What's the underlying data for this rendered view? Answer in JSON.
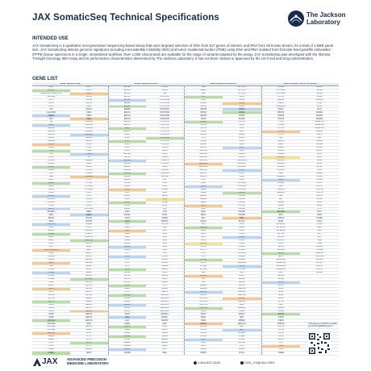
{
  "header": {
    "title": "JAX SomaticSeq Technical Specifications",
    "logo_line1": "The Jackson",
    "logo_line2": "Laboratory"
  },
  "intended_use": {
    "heading": "INTENDED USE",
    "text": "JAX SomaticSeq is a qualitative next generation sequencing based assay that uses targeted selection of DNA from 517 genes of interest, and RNA from 55 known drivers, for a total of 1.5MB panel size. JAX SomaticSeq detects genomic signatures including microsatellite instability (MSI) and tumor mutational burden (TMB) using DNA and RNA isolated from formalin-fixed paraffin embedded (FFPE) tissue specimens in a single, streamlined workflow. Over 1,000 clinical trials are available for the range of variants targeted by the assay. JAX SomaticSeq was developed with the Illumina TruSight Oncology 500 Assay and its performance characteristics determined by The Jackson Laboratory. It has not been cleared or approved by the US Food and Drug Administration."
  },
  "gene_list": {
    "heading": "GENE LIST",
    "columns": [
      "Small Variants Only",
      "Small Variants & CNVs",
      "Small Variants & Fusions",
      "Small Variants, CNVs, & Fusions"
    ],
    "rows": [
      [
        "ABL1",
        "CD274",
        "EPHA2",
        "H3F3B",
        "KDR",
        "NOTCH2",
        "PPM1D",
        "SDHD"
      ],
      [
        "ACVR1",
        "CD276",
        "EPHA3",
        "H3F3C",
        "KEAP1",
        "NOTCH3",
        "PPP2R1A",
        "SETD2"
      ],
      [
        "ABRAXAS1 (FAM175A)",
        "CD74",
        "EPHA5",
        "HGF",
        "KEL",
        "NOTCH4",
        "PPP2R2A",
        "SF3B1"
      ],
      [
        "ACVR1B",
        "CD79A",
        "EPHA7",
        "HIST1H1C",
        "KIT",
        "NPM1",
        "PPP6C",
        "SH2B3"
      ],
      [
        "AKT1",
        "CD79B",
        "EPHB1",
        "HIST1H2BD",
        "KLF4",
        "NRAS",
        "PRDM1",
        "SH2D1A"
      ],
      [
        "AKT2",
        "CDC73",
        "ERBB2",
        "HIST1H3A",
        "KLHL6",
        "NRG1",
        "PREX2",
        "SHQ1"
      ],
      [
        "AKT3",
        "CDH1",
        "ERBB3",
        "HIST1H3B",
        "KMT2A",
        "NSD1",
        "PRKAR1A",
        "SLIT2"
      ],
      [
        "ALK",
        "CDK12",
        "ERBB4",
        "HIST1H3C",
        "KMT2B",
        "NTRK1",
        "PRKCI",
        "SLX4"
      ],
      [
        "ALOX12B",
        "CDK4",
        "ERCC1",
        "HIST1H3D",
        "KMT2C",
        "NTRK2",
        "PRKDC",
        "SMAD2"
      ],
      [
        "AMER1",
        "CDK6",
        "ERCC2",
        "HIST1H3E",
        "KMT2D",
        "NTRK3",
        "PRSS8",
        "SMAD3"
      ],
      [
        "APC",
        "CDK8",
        "ERCC3",
        "HIST1H3F",
        "KRAS",
        "NUP93",
        "PTCH1",
        "SMAD4"
      ],
      [
        "AR",
        "CDKN1A",
        "ERCC4",
        "HIST1H3G",
        "LAMP1",
        "NUTM1",
        "PTEN",
        "SMARCA4"
      ],
      [
        "ARAF",
        "CDKN1B",
        "ERCC5",
        "HIST1H3H",
        "LATS1",
        "PAK1",
        "PTPN11",
        "SMARCB1"
      ],
      [
        "ARFRP1",
        "CDKN2A",
        "ERG",
        "HIST1H3I",
        "LATS2",
        "PAK3",
        "PTPRD",
        "SMARCD1"
      ],
      [
        "ARID1A",
        "CDKN2B",
        "ERRFI1",
        "HIST1H3J",
        "LMO1",
        "PAK7",
        "PTPRS",
        "SMC1A"
      ],
      [
        "ARID1B",
        "CDKN2C",
        "ESR1",
        "HIST2H3A",
        "LRP1B",
        "PALB2",
        "PTPRT",
        "SMC3"
      ],
      [
        "ARID2",
        "CEBPA",
        "ETS1",
        "HIST2H3C",
        "LYN",
        "PARP1",
        "QKI",
        "SMO"
      ],
      [
        "ARID5B",
        "CENPA",
        "ETV1",
        "HIST2H3D",
        "LZTR1",
        "PAX3",
        "RAB35",
        "SNCAIP"
      ],
      [
        "ASXL1",
        "CHD2",
        "ETV4",
        "HIST3H3",
        "MAGI2",
        "PAX5",
        "RAC1",
        "SOCS1"
      ],
      [
        "ASXL2",
        "CHD4",
        "ETV5",
        "HLA-A",
        "MALT1",
        "PAX7",
        "RAD21",
        "SOX10"
      ],
      [
        "ATM",
        "CHEK1",
        "ETV6",
        "HLA-B",
        "MAP2K1",
        "PAX8",
        "RAD50",
        "SOX17"
      ],
      [
        "ATR",
        "CHEK2",
        "EWSR1",
        "HLA-C",
        "MAP2K2",
        "PBRM1",
        "RAD51",
        "SOX2"
      ],
      [
        "ATRX",
        "CIC",
        "EZH2",
        "HNF1A",
        "MAP2K4",
        "PDCD1",
        "RAD51B",
        "SOX9"
      ],
      [
        "AURKA",
        "CREBBP",
        "FAM123B",
        "HNRNPK",
        "MAP3K1",
        "PDCD1LG2",
        "RAD51C",
        "SPEN"
      ],
      [
        "AURKB",
        "CRKL",
        "FANCA",
        "HOXB13",
        "MAP3K13",
        "PDGFRA",
        "RAD51D",
        "SPOP"
      ],
      [
        "AXIN1",
        "CRLF2",
        "FANCC",
        "HRAS",
        "MAP3K14",
        "PDGFRB",
        "RAD52",
        "SPTA1"
      ],
      [
        "AXIN2",
        "CSF1R",
        "FANCD2",
        "HSD3B1",
        "MAP4K1",
        "PDK1",
        "RAD54L",
        "SRC"
      ],
      [
        "AXL",
        "CSF3R",
        "FANCE",
        "HSP90AA1",
        "MAPK1",
        "PDPK1",
        "RAF1",
        "SRSF2"
      ],
      [
        "B2M",
        "CSNK1A1",
        "FANCF",
        "ICOSLG",
        "MAPK3",
        "PGR",
        "RANBP2",
        "STAG1"
      ],
      [
        "BAP1",
        "CTCF",
        "FANCG",
        "ID3",
        "MAX",
        "PHF6",
        "RARA",
        "STAG2"
      ],
      [
        "BARD1",
        "CTLA4",
        "FANCI",
        "IDH1",
        "MCL1",
        "PHOX2B",
        "RASA1",
        "STAT3"
      ],
      [
        "BBC3",
        "CTNNA1",
        "FANCL",
        "IDH2",
        "MDC1",
        "PIK3C2B",
        "RB1",
        "STAT4"
      ],
      [
        "BCL10",
        "CTNNB1",
        "FAS",
        "IFNGR1",
        "MDM2",
        "PIK3C2G",
        "RBM10",
        "STAT5A"
      ],
      [
        "BCL2",
        "CUL3",
        "FAT1",
        "IGF1",
        "MDM4",
        "PIK3C3",
        "RECQL4",
        "STAT5B"
      ],
      [
        "BCL2L1",
        "CUX1",
        "FBXW7",
        "IGF1R",
        "MED12",
        "PIK3CA",
        "REL",
        "STK11"
      ],
      [
        "BCL2L11",
        "CXCR4",
        "FGF1",
        "IGF2",
        "MEF2B",
        "PIK3CB",
        "RET",
        "STK40"
      ],
      [
        "BCL2L2",
        "CYLD",
        "FGF10",
        "IKBKE",
        "MEN1",
        "PIK3CD",
        "RFWD2",
        "SUFU"
      ],
      [
        "BCL6",
        "DAXX",
        "FGF14",
        "IKZF1",
        "MET",
        "PIK3CG",
        "RHEB",
        "SUZ12"
      ],
      [
        "BCOR",
        "DCUN1D1",
        "FGF19",
        "IL10",
        "MGA",
        "PIK3R1",
        "RHOA",
        "SYK"
      ],
      [
        "BCORL1",
        "DDR1",
        "FGF2",
        "IL7R",
        "MITF",
        "PIK3R2",
        "RICTOR",
        "TAF1"
      ],
      [
        "BCR",
        "DDR2",
        "FGF23",
        "INHA",
        "MLH1",
        "PIK3R3",
        "RIT1",
        "TBX3"
      ],
      [
        "BIRC3",
        "DDX41",
        "FGF3",
        "INHBA",
        "MLL",
        "PIM1",
        "RNF43",
        "TCEB1"
      ],
      [
        "BLM",
        "DHX15",
        "FGF4",
        "INPP4A",
        "MLLT3",
        "PLCG2",
        "ROS1",
        "TCF3"
      ],
      [
        "BMPR1A",
        "DICER1",
        "FGF5",
        "INPP4B",
        "MPL",
        "PLK2",
        "RPS6KA4",
        "TCF7L2"
      ],
      [
        "BRAF",
        "DIS3",
        "FGF6",
        "INSR",
        "MRE11A",
        "PMAIP1",
        "RPS6KB1",
        "TERC"
      ],
      [
        "BRCA1",
        "DNAJB1",
        "FGF7",
        "IRF2",
        "MSH2",
        "PMS1",
        "RPS6KB2",
        "TERT"
      ],
      [
        "BRCA2",
        "DNMT1",
        "FGF8",
        "IRF4",
        "MSH3",
        "PMS2",
        "RPTOR",
        "TET1"
      ],
      [
        "BRD4",
        "DNMT3A",
        "FGF9",
        "IRS1",
        "MSH6",
        "PNRC1",
        "RUNX1",
        "TET2"
      ],
      [
        "BRIP1",
        "DNMT3B",
        "FGFR1",
        "IRS2",
        "MST1",
        "POLD1",
        "RUNX1T1",
        "TFE3"
      ],
      [
        "BTG1",
        "DOT1L",
        "FGFR2",
        "JAK1",
        "MST1R",
        "POLE",
        "RYBP",
        "TFRC"
      ],
      [
        "BTK",
        "E2F3",
        "FGFR3",
        "JAK2",
        "MTOR",
        "PPARG",
        "SDHA",
        "TGFBR1"
      ],
      [
        "C11orf30 (EMSY)",
        "EED",
        "FGFR4",
        "JAK3",
        "MUTYH",
        "PPM1D",
        "SDHAF2",
        "TGFBR2"
      ],
      [
        "CALR",
        "EGFL7",
        "FH",
        "JUN",
        "MYB",
        "PPP2R1A",
        "SDHB",
        "TMEM127"
      ],
      [
        "CARD11",
        "EGFR",
        "FLCN",
        "KAT6A",
        "MYC",
        "PRDM1",
        "SDHC",
        "TMPRSS2"
      ],
      [
        "CASP8",
        "EIF1AX",
        "FLI1",
        "KDM5A",
        "MYCL1",
        "PREX2",
        "SMARCA2",
        "ZBTB16"
      ],
      [
        "CBFB",
        "EIF4A2",
        "FLT1",
        "KDM5C",
        "MYCN",
        "PRKAR1A",
        "SMARCA4",
        "ZFHX3"
      ],
      [
        "CBL",
        "EIF4E",
        "FLT3",
        "KDM6A",
        "MYD88",
        "PRKCI",
        "SMARCB1",
        "ZNF217"
      ],
      [
        "CCND1",
        "ELOC",
        "FLT4",
        "KEAP1",
        "MYOD1",
        "PTPN11",
        "SMARCD1",
        "ZNF703"
      ],
      [
        "CCND2",
        "EML4",
        "FOXA1",
        "KLF5",
        "NBN",
        "QKI",
        "SMO",
        "ZRSR2"
      ],
      [
        "CCND3",
        "EP300",
        "FOXL2",
        "KMT2A",
        "NCOR1",
        "RAC1",
        "SNCAIP",
        ""
      ],
      [
        "CCNE1",
        "EPCAM",
        "FOXO1",
        "KRAS",
        "NF1",
        "RAD21",
        "SOCS1",
        ""
      ],
      [
        "CD22",
        "EPHA2",
        "FOXP1",
        "LAMP1",
        "NF2",
        "RAD50",
        "SOX10",
        ""
      ],
      [
        "CD274",
        "EPHA3",
        "FRS2",
        "LYN",
        "NFE2L2",
        "RAD51",
        "SOX17",
        ""
      ],
      [
        "CD276",
        "EPHA5",
        "FUBP1",
        "MAGI2",
        "NFKBIA",
        "RAD51B",
        "SOX2",
        ""
      ],
      [
        "CD74",
        "EPHA7",
        "FYN",
        "MALT1",
        "NKX2-1",
        "RAD51C",
        "SOX9",
        ""
      ],
      [
        "CD79A",
        "EPHB1",
        "GABRA6",
        "MAP2K1",
        "NKX3-1",
        "RAD51D",
        "SPEN",
        ""
      ],
      [
        "CD79B",
        "ERBB2",
        "GATA1",
        "MAP2K2",
        "NOTCH1",
        "RAD52",
        "SPOP",
        ""
      ],
      [
        "CDC73",
        "ERBB3",
        "GATA2",
        "MAP2K4",
        "NOTCH2",
        "RAD54L",
        "SPTA1",
        ""
      ],
      [
        "CDH1",
        "ERBB4",
        "GATA3",
        "MAP3K1",
        "NOTCH3",
        "RAF1",
        "SRC",
        ""
      ],
      [
        "CDK12",
        "ERCC1",
        "GATA4",
        "MAP3K13",
        "NOTCH4",
        "RANBP2",
        "SRSF2",
        ""
      ],
      [
        "CDK4",
        "ERCC2",
        "GATA6",
        "MAP3K14",
        "NPM1",
        "RARA",
        "STAG1",
        ""
      ],
      [
        "CDK6",
        "ERCC3",
        "GEN1",
        "MAP4K1",
        "NRAS",
        "RASA1",
        "STAG2",
        ""
      ],
      [
        "CDK8",
        "ERCC4",
        "GID4",
        "MAPK1",
        "NRG1",
        "RB1",
        "STAT3",
        ""
      ],
      [
        "CDKN1A",
        "ERCC5",
        "GLI1",
        "MAPK3",
        "NSD1",
        "RBM10",
        "STAT4",
        ""
      ],
      [
        "CDKN1B",
        "ERG",
        "GNA11",
        "MAX",
        "NTRK1",
        "RECQL4",
        "STAT5A",
        ""
      ],
      [
        "CDKN2A",
        "ERRFI1",
        "GNA13",
        "MCL1",
        "NTRK2",
        "REL",
        "STAT5B",
        ""
      ],
      [
        "CDKN2B",
        "ESR1",
        "GNAQ",
        "MDC1",
        "NTRK3",
        "RET",
        "STK11",
        ""
      ],
      [
        "CDKN2C",
        "ETS1",
        "GNAS",
        "MDM2",
        "NUP93",
        "RFWD2",
        "STK40",
        ""
      ],
      [
        "CEBPA",
        "ETV1",
        "GPR124",
        "MDM4",
        "NUTM1",
        "RHEB",
        "SUFU",
        ""
      ],
      [
        "CENPA",
        "ETV4",
        "GPS2",
        "MED12",
        "PAK1",
        "RHOA",
        "SUZ12",
        ""
      ],
      [
        "CHD2",
        "ETV5",
        "GREM1",
        "MEF2B",
        "PAK3",
        "RICTOR",
        "SYK",
        ""
      ],
      [
        "CHD4",
        "ETV6",
        "GRIN2A",
        "MEN1",
        "PAK7",
        "RIT1",
        "TAF1",
        ""
      ],
      [
        "CHEK1",
        "EWSR1",
        "GRM3",
        "MET",
        "PALB2",
        "RNF43",
        "TBX3",
        ""
      ],
      [
        "CHEK2",
        "EZH2",
        "GSK3B",
        "MGA",
        "PARP1",
        "ROS1",
        "TCEB1",
        ""
      ]
    ],
    "highlights": [
      {
        "r": 1,
        "c": 0,
        "t": "g"
      },
      {
        "r": 2,
        "c": 1,
        "t": "o"
      },
      {
        "r": 3,
        "c": 4,
        "t": "g"
      },
      {
        "r": 4,
        "c": 2,
        "t": "b"
      },
      {
        "r": 5,
        "c": 5,
        "t": "o"
      },
      {
        "r": 6,
        "c": 2,
        "t": "g"
      },
      {
        "r": 7,
        "c": 5,
        "t": "b"
      },
      {
        "r": 8,
        "c": 5,
        "t": "g"
      },
      {
        "r": 9,
        "c": 0,
        "t": "b"
      },
      {
        "r": 10,
        "c": 1,
        "t": "o"
      },
      {
        "r": 11,
        "c": 4,
        "t": "g"
      },
      {
        "r": 12,
        "c": 0,
        "t": "b"
      },
      {
        "r": 13,
        "c": 2,
        "t": "g"
      },
      {
        "r": 14,
        "c": 6,
        "t": "o"
      },
      {
        "r": 15,
        "c": 1,
        "t": "b"
      },
      {
        "r": 16,
        "c": 3,
        "t": "g"
      },
      {
        "r": 17,
        "c": 2,
        "t": "g"
      },
      {
        "r": 18,
        "c": 0,
        "t": "o"
      },
      {
        "r": 19,
        "c": 5,
        "t": "b"
      },
      {
        "r": 20,
        "c": 0,
        "t": "g"
      },
      {
        "r": 21,
        "c": 1,
        "t": "b"
      },
      {
        "r": 22,
        "c": 6,
        "t": "y"
      },
      {
        "r": 23,
        "c": 2,
        "t": "b"
      },
      {
        "r": 24,
        "c": 4,
        "t": "o"
      },
      {
        "r": 25,
        "c": 0,
        "t": "g"
      },
      {
        "r": 26,
        "c": 5,
        "t": "b"
      },
      {
        "r": 27,
        "c": 2,
        "t": "g"
      },
      {
        "r": 28,
        "c": 1,
        "t": "o"
      },
      {
        "r": 29,
        "c": 6,
        "t": "b"
      },
      {
        "r": 30,
        "c": 0,
        "t": "g"
      },
      {
        "r": 31,
        "c": 4,
        "t": "b"
      },
      {
        "r": 32,
        "c": 2,
        "t": "o"
      },
      {
        "r": 33,
        "c": 5,
        "t": "g"
      },
      {
        "r": 34,
        "c": 0,
        "t": "b"
      },
      {
        "r": 35,
        "c": 3,
        "t": "y"
      },
      {
        "r": 36,
        "c": 2,
        "t": "g"
      },
      {
        "r": 37,
        "c": 4,
        "t": "o"
      },
      {
        "r": 38,
        "c": 0,
        "t": "b"
      },
      {
        "r": 39,
        "c": 6,
        "t": "g"
      },
      {
        "r": 40,
        "c": 1,
        "t": "b"
      },
      {
        "r": 41,
        "c": 5,
        "t": "o"
      },
      {
        "r": 42,
        "c": 2,
        "t": "g"
      },
      {
        "r": 43,
        "c": 0,
        "t": "b"
      },
      {
        "r": 44,
        "c": 4,
        "t": "g"
      },
      {
        "r": 45,
        "c": 2,
        "t": "o"
      },
      {
        "r": 46,
        "c": 0,
        "t": "g"
      },
      {
        "r": 47,
        "c": 5,
        "t": "b"
      },
      {
        "r": 48,
        "c": 1,
        "t": "g"
      },
      {
        "r": 49,
        "c": 4,
        "t": "y"
      },
      {
        "r": 50,
        "c": 2,
        "t": "b"
      },
      {
        "r": 51,
        "c": 0,
        "t": "o"
      },
      {
        "r": 52,
        "c": 6,
        "t": "g"
      },
      {
        "r": 53,
        "c": 2,
        "t": "b"
      },
      {
        "r": 54,
        "c": 4,
        "t": "g"
      },
      {
        "r": 55,
        "c": 0,
        "t": "o"
      },
      {
        "r": 56,
        "c": 5,
        "t": "b"
      },
      {
        "r": 57,
        "c": 2,
        "t": "g"
      },
      {
        "r": 58,
        "c": 0,
        "t": "b"
      },
      {
        "r": 59,
        "c": 4,
        "t": "o"
      },
      {
        "r": 60,
        "c": 1,
        "t": "g"
      },
      {
        "r": 61,
        "c": 6,
        "t": "b"
      },
      {
        "r": 62,
        "c": 2,
        "t": "g"
      },
      {
        "r": 63,
        "c": 0,
        "t": "o"
      },
      {
        "r": 64,
        "c": 4,
        "t": "b"
      },
      {
        "r": 65,
        "c": 2,
        "t": "g"
      },
      {
        "r": 66,
        "c": 5,
        "t": "o"
      },
      {
        "r": 67,
        "c": 0,
        "t": "g"
      },
      {
        "r": 68,
        "c": 2,
        "t": "b"
      },
      {
        "r": 69,
        "c": 4,
        "t": "g"
      },
      {
        "r": 70,
        "c": 1,
        "t": "o"
      },
      {
        "r": 71,
        "c": 6,
        "t": "g"
      },
      {
        "r": 72,
        "c": 2,
        "t": "b"
      },
      {
        "r": 73,
        "c": 0,
        "t": "g"
      },
      {
        "r": 74,
        "c": 4,
        "t": "o"
      },
      {
        "r": 75,
        "c": 2,
        "t": "g"
      },
      {
        "r": 76,
        "c": 5,
        "t": "b"
      },
      {
        "r": 77,
        "c": 0,
        "t": "o"
      },
      {
        "r": 78,
        "c": 2,
        "t": "g"
      },
      {
        "r": 79,
        "c": 4,
        "t": "b"
      },
      {
        "r": 80,
        "c": 1,
        "t": "g"
      },
      {
        "r": 81,
        "c": 6,
        "t": "o"
      },
      {
        "r": 82,
        "c": 2,
        "t": "b"
      },
      {
        "r": 83,
        "c": 0,
        "t": "g"
      },
      {
        "r": 84,
        "c": 4,
        "t": "y"
      }
    ],
    "highlight_colors": {
      "g": "#b9dea5",
      "b": "#bcd6ee",
      "o": "#f6c98f",
      "y": "#f4e48e"
    },
    "footnote": "*Orthologous to PIK3CA and MET; see info for additional genes"
  },
  "footer": {
    "brand": "JAX",
    "tagline_line1": "ADVANCED PRECISION",
    "tagline_line2": "MEDICINE LABORATORY",
    "phone": "1.844.837.2329",
    "email": "CSS_CS@JAX.ORG"
  }
}
